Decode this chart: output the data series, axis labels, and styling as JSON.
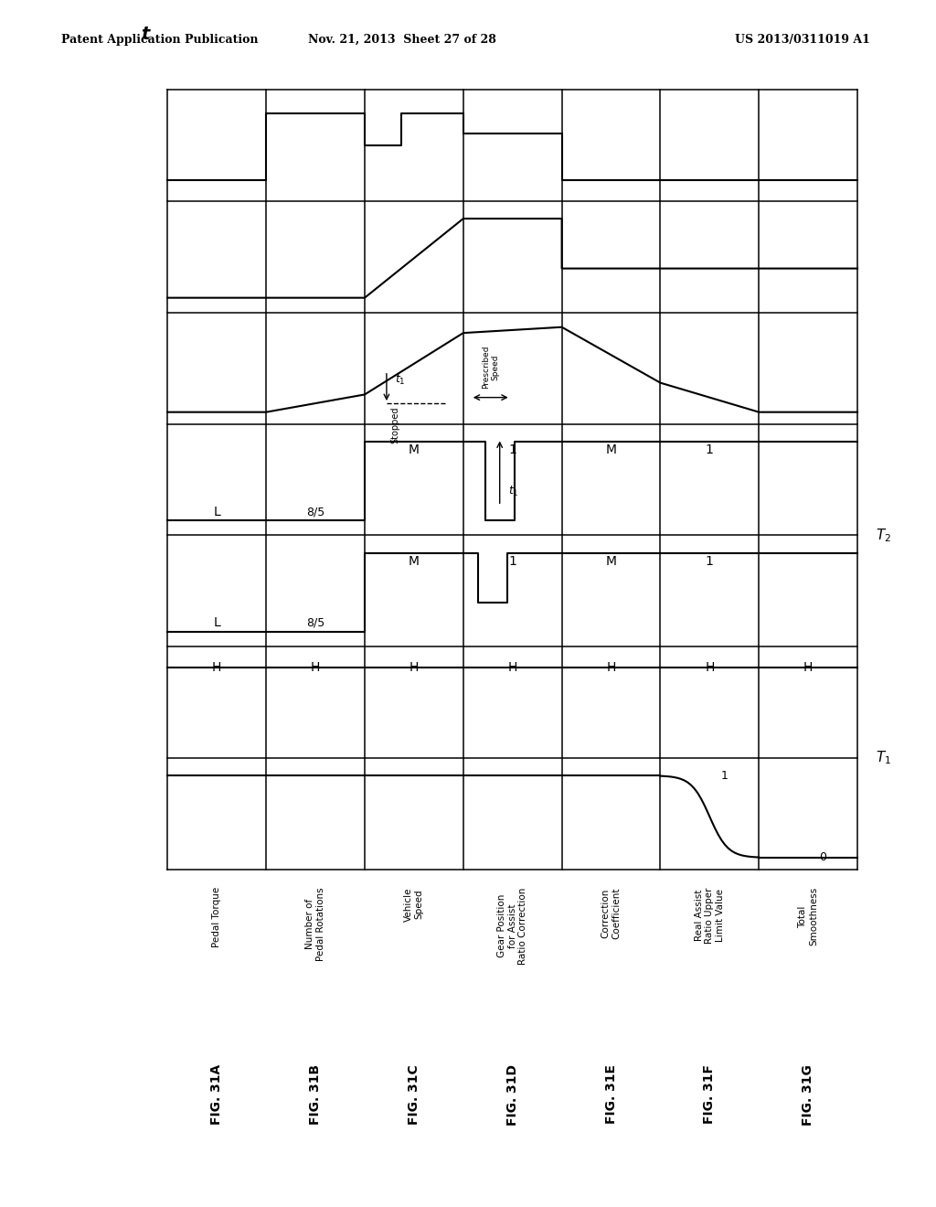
{
  "header_left": "Patent Application Publication",
  "header_center": "Nov. 21, 2013  Sheet 27 of 28",
  "header_right": "US 2013/0311019 A1",
  "background": "#ffffff",
  "fig_labels": [
    "FIG. 31A",
    "FIG. 31B",
    "FIG. 31C",
    "FIG. 31D",
    "FIG. 31E",
    "FIG. 31F",
    "FIG. 31G"
  ],
  "row_descs": [
    "Pedal Torque",
    "Number of\nPedal Rotations",
    "Vehicle\nSpeed",
    "Gear Position\nfor Assist\nRatio Correction",
    "Correction\nCoefficient",
    "Real Assist\nRatio Upper\nLimit Value",
    "Total\nSmoothness"
  ],
  "note_T1": "T₁",
  "note_T2": "T₂",
  "note_t1": "t₁",
  "note_prescribed": "Prescribed\nSpeed",
  "note_stopped": "Stopped",
  "smoothness_1": "1",
  "smoothness_0": "0"
}
